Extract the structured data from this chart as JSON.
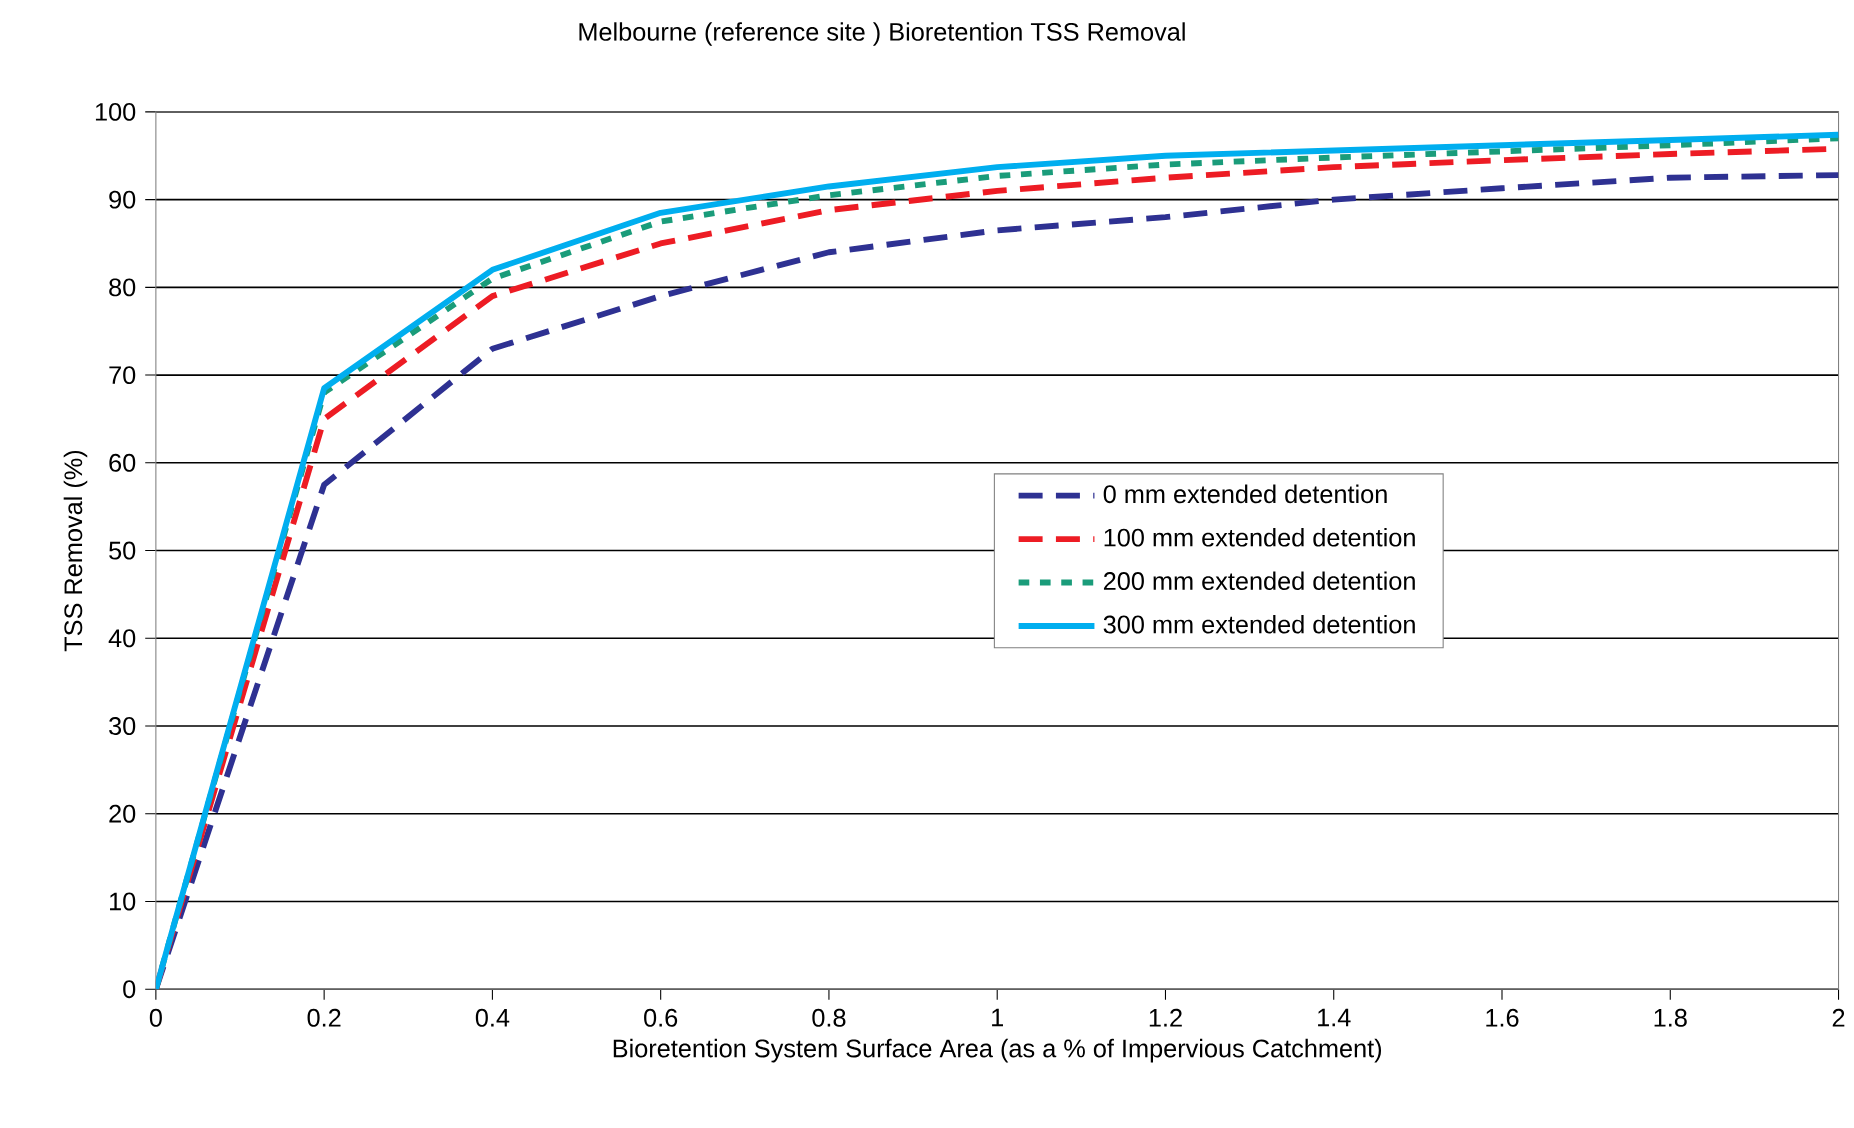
{
  "chart_data": {
    "type": "line",
    "title": "Melbourne (reference site ) Bioretention TSS Removal",
    "xlabel": "Bioretention System Surface Area (as a % of Impervious Catchment)",
    "ylabel": "TSS Removal (%)",
    "x": [
      0,
      0.2,
      0.4,
      0.6,
      0.8,
      1.0,
      1.2,
      1.4,
      1.6,
      1.8,
      2.0
    ],
    "xlim": [
      0,
      2
    ],
    "xticks": [
      0,
      0.2,
      0.4,
      0.6,
      0.8,
      1,
      1.2,
      1.4,
      1.6,
      1.8,
      2
    ],
    "ylim": [
      0,
      100
    ],
    "yticks": [
      0,
      10,
      20,
      30,
      40,
      50,
      60,
      70,
      80,
      90,
      100
    ],
    "grid": "y",
    "legend": "right",
    "marker": "none",
    "series": [
      {
        "name": "0 mm extended detention",
        "color": "#2e3192",
        "line_style": "dashed",
        "values": [
          0,
          57.5,
          73,
          79,
          84,
          86.5,
          88,
          90,
          91.3,
          92.5,
          92.8
        ]
      },
      {
        "name": "100 mm extended detention",
        "color": "#ed1c24",
        "line_style": "dashed",
        "values": [
          0,
          65,
          79,
          85,
          88.8,
          91,
          92.5,
          93.7,
          94.5,
          95.2,
          95.8
        ]
      },
      {
        "name": "200 mm extended detention",
        "color": "#1a9c7a",
        "line_style": "dotted",
        "values": [
          0,
          68,
          81,
          87.5,
          90.5,
          92.7,
          94,
          94.8,
          95.5,
          96.2,
          97
        ]
      },
      {
        "name": "300 mm extended detention",
        "color": "#00aeef",
        "line_style": "solid",
        "values": [
          0,
          68.5,
          82,
          88.5,
          91.5,
          93.7,
          95,
          95.6,
          96.2,
          96.8,
          97.4
        ]
      }
    ]
  }
}
